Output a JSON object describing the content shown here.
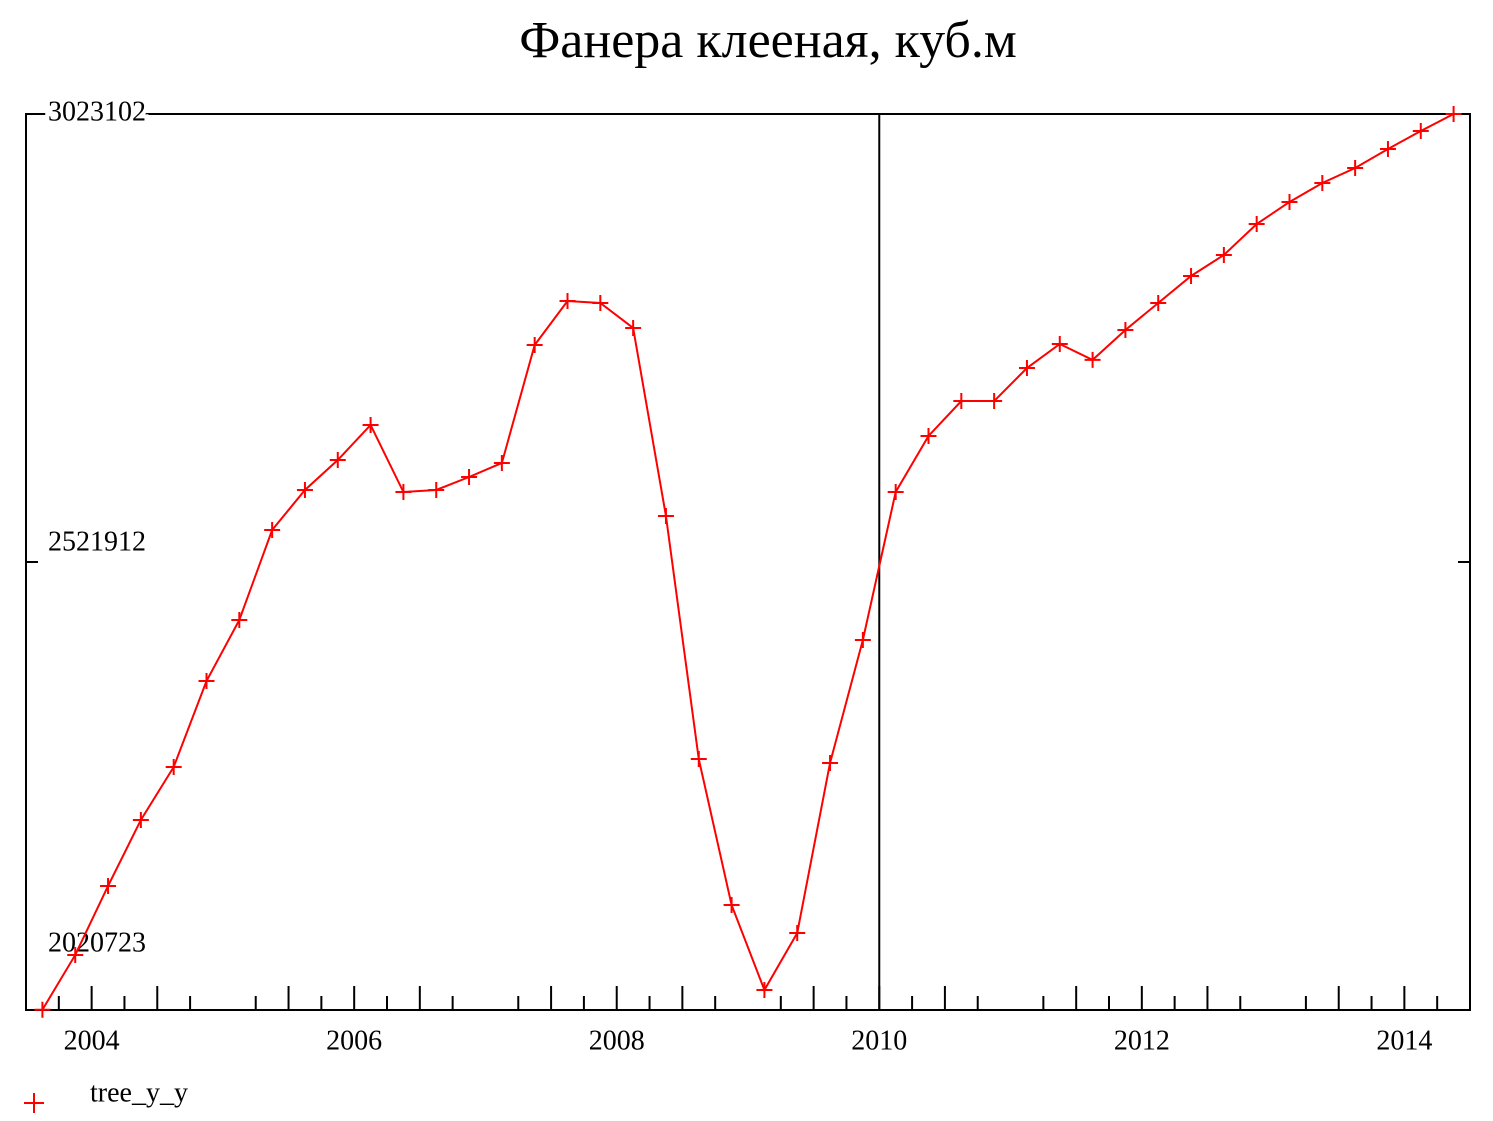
{
  "chart_data": {
    "type": "line",
    "title": "Фанера клееная, куб.м",
    "x": [
      2003.625,
      2003.875,
      2004.125,
      2004.375,
      2004.625,
      2004.875,
      2005.125,
      2005.375,
      2005.625,
      2005.875,
      2006.125,
      2006.375,
      2006.625,
      2006.875,
      2007.125,
      2007.375,
      2007.625,
      2007.875,
      2008.125,
      2008.375,
      2008.625,
      2008.875,
      2009.125,
      2009.375,
      2009.625,
      2009.875,
      2010.125,
      2010.375,
      2010.625,
      2010.875,
      2011.125,
      2011.375,
      2011.625,
      2011.875,
      2012.125,
      2012.375,
      2012.625,
      2012.875,
      2013.125,
      2013.375,
      2013.625,
      2013.875,
      2014.125,
      2014.375
    ],
    "series": [
      {
        "name": "tree_y_y",
        "color": "#ff0000",
        "values": [
          2021000,
          2082300,
          2159500,
          2233300,
          2292600,
          2388800,
          2457000,
          2557700,
          2602500,
          2636000,
          2675200,
          2600200,
          2602500,
          2617000,
          2632700,
          2764700,
          2813900,
          2811700,
          2783700,
          2573400,
          2301500,
          2138200,
          2043100,
          2106900,
          2297100,
          2434700,
          2600200,
          2662900,
          2702000,
          2702000,
          2738900,
          2765800,
          2748000,
          2781500,
          2811700,
          2841900,
          2865400,
          2900000,
          2924700,
          2945900,
          2962700,
          2984000,
          3004100,
          3023102
        ]
      }
    ],
    "xlim": [
      2003.5,
      2014.5
    ],
    "xticks": [
      2004,
      2006,
      2008,
      2010,
      2012,
      2014
    ],
    "xminorticks": [
      2003.75,
      2004.25,
      2004.5,
      2004.75,
      2005.25,
      2005.5,
      2005.75,
      2006.25,
      2006.5,
      2006.75,
      2007.25,
      2007.5,
      2007.75,
      2008.25,
      2008.5,
      2008.75,
      2009.25,
      2009.5,
      2009.75,
      2010.25,
      2010.5,
      2010.75,
      2011.25,
      2011.5,
      2011.75,
      2012.25,
      2012.5,
      2012.75,
      2013.25,
      2013.5,
      2013.75,
      2014.25
    ],
    "vline": 2010,
    "ylim": [
      2020723,
      3023102
    ],
    "yticks": [
      3023102,
      2521912,
      2020723
    ],
    "legend": "bottom-left"
  }
}
